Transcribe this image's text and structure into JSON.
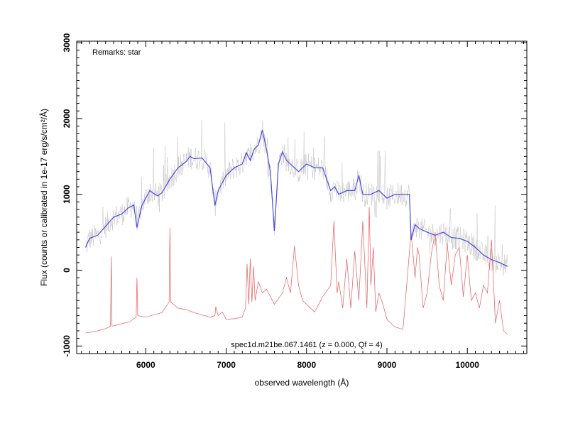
{
  "chart_data": {
    "type": "line",
    "title": "",
    "xlabel": "observed wavelength (Å)",
    "ylabel": "Flux (counts or calibrated in 1e-17 erg/s/cm²/Å)",
    "xlim": [
      5140,
      10740
    ],
    "ylim": [
      -1100,
      3020
    ],
    "xticks": [
      6000,
      7000,
      8000,
      9000,
      10000
    ],
    "yticks": [
      -1000,
      0,
      1000,
      2000,
      3000
    ],
    "remarks": "Remarks: star",
    "caption": "spec1d.m21be.067.1461 (z = 0.000, Qf = 4)",
    "grid": false,
    "colors": {
      "raw": "#b4b4b4",
      "smoothed": "#4a4ae6",
      "sky": "#e65a5a"
    },
    "series": [
      {
        "key": "smoothed",
        "x": [
          5250,
          5300,
          5400,
          5500,
          5600,
          5700,
          5780,
          5850,
          5890,
          5950,
          6050,
          6100,
          6150,
          6200,
          6300,
          6400,
          6500,
          6550,
          6600,
          6700,
          6800,
          6860,
          6900,
          7000,
          7100,
          7200,
          7250,
          7300,
          7350,
          7400,
          7450,
          7500,
          7550,
          7600,
          7650,
          7700,
          7750,
          7800,
          7900,
          8000,
          8100,
          8200,
          8300,
          8350,
          8400,
          8500,
          8600,
          8650,
          8700,
          8800,
          8900,
          9000,
          9100,
          9200,
          9280,
          9300,
          9350,
          9400,
          9500,
          9600,
          9700,
          9800,
          9900,
          10000,
          10100,
          10200,
          10300,
          10400,
          10500
        ],
        "y": [
          300,
          420,
          460,
          580,
          700,
          740,
          820,
          860,
          560,
          850,
          1050,
          1010,
          980,
          1020,
          1200,
          1350,
          1430,
          1500,
          1470,
          1480,
          1350,
          850,
          1050,
          1250,
          1350,
          1400,
          1550,
          1450,
          1600,
          1650,
          1850,
          1600,
          1300,
          520,
          1400,
          1560,
          1450,
          1400,
          1300,
          1400,
          1350,
          1350,
          1050,
          1100,
          1000,
          1050,
          1050,
          1250,
          1000,
          1000,
          1050,
          950,
          1000,
          1000,
          1000,
          400,
          600,
          550,
          500,
          460,
          500,
          430,
          420,
          380,
          300,
          200,
          140,
          100,
          50
        ]
      },
      {
        "key": "sky",
        "x": [
          5250,
          5400,
          5500,
          5560,
          5570,
          5580,
          5650,
          5800,
          5880,
          5890,
          5900,
          6000,
          6200,
          6290,
          6300,
          6310,
          6400,
          6500,
          6600,
          6800,
          6860,
          6870,
          6900,
          6950,
          7000,
          7100,
          7200,
          7240,
          7260,
          7280,
          7300,
          7320,
          7340,
          7360,
          7400,
          7450,
          7500,
          7600,
          7700,
          7750,
          7800,
          7850,
          7900,
          7950,
          8000,
          8100,
          8200,
          8300,
          8340,
          8380,
          8400,
          8450,
          8500,
          8550,
          8600,
          8650,
          8700,
          8750,
          8780,
          8800,
          8830,
          8860,
          8900,
          8950,
          9000,
          9100,
          9200,
          9300,
          9350,
          9380,
          9400,
          9450,
          9500,
          9550,
          9600,
          9650,
          9700,
          9750,
          9800,
          9850,
          9900,
          9950,
          10000,
          10050,
          10100,
          10150,
          10200,
          10250,
          10300,
          10350,
          10400,
          10450,
          10500
        ],
        "y": [
          -830,
          -800,
          -770,
          -740,
          180,
          -740,
          -720,
          -680,
          -620,
          -100,
          -600,
          -620,
          -560,
          -420,
          560,
          -420,
          -500,
          -520,
          -560,
          -620,
          -600,
          -480,
          -600,
          -550,
          -650,
          -640,
          -620,
          -500,
          80,
          -450,
          150,
          -420,
          50,
          -400,
          -150,
          -300,
          -250,
          -450,
          -300,
          -100,
          -300,
          320,
          -200,
          -400,
          -450,
          -550,
          -350,
          -200,
          650,
          -300,
          -150,
          -500,
          150,
          -500,
          250,
          -400,
          650,
          -500,
          830,
          -200,
          300,
          -550,
          -300,
          -450,
          -650,
          -750,
          -780,
          500,
          -100,
          300,
          200,
          -500,
          -300,
          200,
          500,
          -200,
          -400,
          350,
          -200,
          200,
          300,
          -350,
          200,
          -400,
          -300,
          -500,
          -200,
          -300,
          400,
          -700,
          -400,
          -800,
          -850
        ]
      }
    ]
  }
}
